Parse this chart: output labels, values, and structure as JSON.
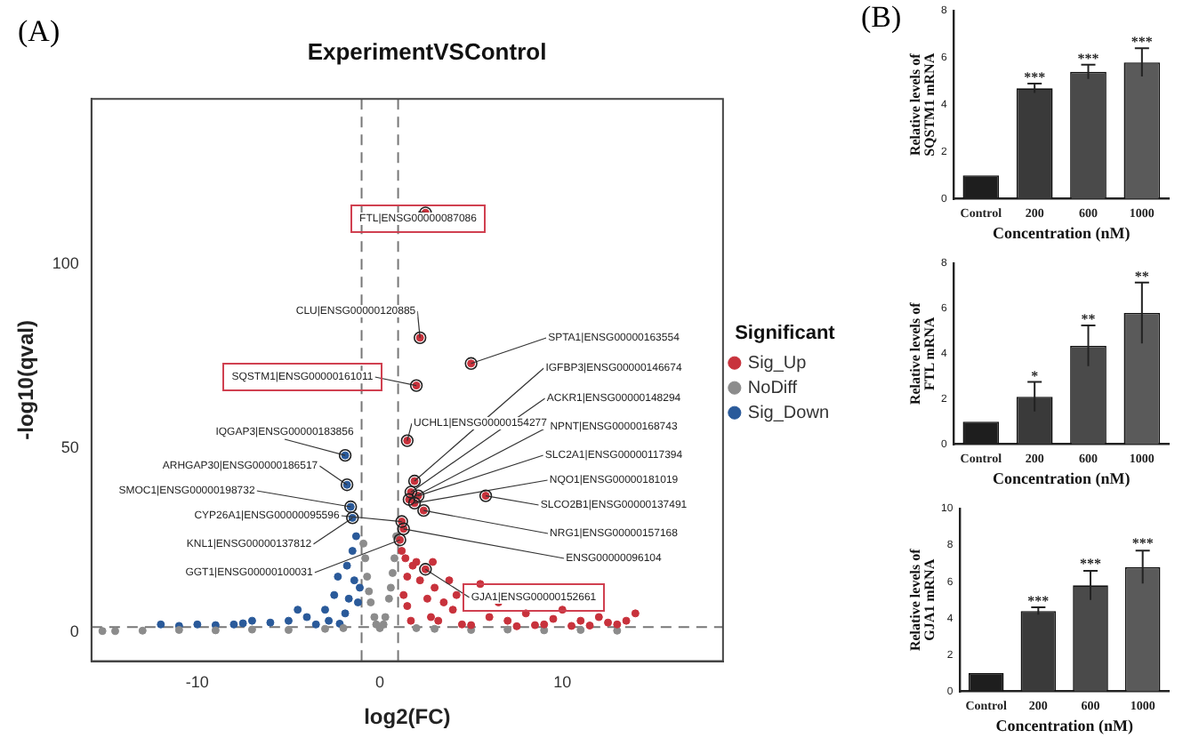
{
  "chart_data": [
    {
      "type": "scatter",
      "title": "ExperimentVSControl",
      "xlabel": "log2(FC)",
      "ylabel": "-log10(qval)",
      "legend": "right",
      "legend_title": "Significant",
      "marker": "circle",
      "grid": false,
      "xlim": [
        -15.8,
        18.8
      ],
      "xticks": [
        -10,
        0,
        10
      ],
      "ylim": [
        -8,
        145
      ],
      "yticks": [
        0,
        50,
        100
      ],
      "series": [
        {
          "name": "Sig_Up",
          "color": "#c8323c",
          "x": [
            2.5,
            2.2,
            5,
            2,
            1.9,
            1.5,
            1.7,
            1.6,
            2.1,
            1.9,
            5.8,
            1.2,
            2.4,
            1.3,
            1.1,
            2.5,
            1.2,
            1.4,
            1.8,
            2,
            1.5,
            2.2,
            3,
            1.3,
            2.6,
            3.5,
            4,
            1.5,
            5.5,
            6,
            7,
            8,
            9,
            10,
            11,
            12,
            13,
            14,
            3.2,
            4.5,
            6.5,
            8.5,
            10.5,
            12.5,
            2.8,
            1.7,
            5,
            7.5,
            9.5,
            11.5,
            13.5,
            4.2,
            3.8,
            2.9
          ],
          "values": [
            114,
            80,
            73,
            67,
            41,
            52,
            38,
            36,
            37,
            35,
            37,
            30,
            33,
            28,
            25,
            17,
            22,
            20,
            18,
            19,
            15,
            14,
            12,
            10,
            9,
            8,
            6,
            7,
            13,
            4,
            3,
            5,
            2,
            6,
            3,
            4,
            2,
            5,
            3,
            2,
            8,
            1.8,
            1.6,
            2.5,
            4,
            3,
            1.8,
            1.5,
            3.5,
            1.7,
            3,
            10,
            14,
            19
          ]
        },
        {
          "name": "NoDiff",
          "color": "#8c8c8c",
          "x": [
            -0.9,
            -0.7,
            -0.5,
            -0.3,
            0,
            0.3,
            0.5,
            0.7,
            0.9,
            -0.2,
            0.2,
            -13,
            -11,
            -9,
            -7,
            -5,
            -3,
            -2,
            2,
            3,
            5,
            7,
            9,
            11,
            13,
            -14.5,
            -15.2,
            -0.8,
            0.8,
            -0.6,
            0.6
          ],
          "values": [
            24,
            15,
            8,
            4,
            1,
            4,
            9,
            16,
            26,
            2,
            2,
            0.3,
            0.5,
            0.4,
            0.6,
            0.5,
            0.8,
            1,
            1,
            0.8,
            0.5,
            0.6,
            0.4,
            0.5,
            0.3,
            0.2,
            0.2,
            20,
            20,
            11,
            12
          ]
        },
        {
          "name": "Sig_Down",
          "color": "#2a5a9a",
          "x": [
            -1.9,
            -1.8,
            -1.6,
            -1.5,
            -1.3,
            -1.5,
            -1.8,
            -2.3,
            -1.4,
            -2.5,
            -1.7,
            -3,
            -1.9,
            -4,
            -2.8,
            -5,
            -6,
            -7,
            -8,
            -9,
            -10,
            -11,
            -12,
            -3.5,
            -2.2,
            -1.2,
            -1.1,
            -4.5,
            -7.5
          ],
          "values": [
            48,
            40,
            34,
            31,
            26,
            22,
            18,
            15,
            14,
            10,
            9,
            6,
            5,
            4,
            3,
            3,
            2.5,
            3,
            2,
            1.8,
            2,
            1.6,
            2,
            2,
            2.2,
            8,
            12,
            6,
            2.3
          ]
        }
      ],
      "ref_lines": [
        {
          "axis": "x",
          "value": -1,
          "line_style": "dashed"
        },
        {
          "axis": "x",
          "value": 1,
          "line_style": "dashed"
        },
        {
          "axis": "y",
          "value": 1.3,
          "line_style": "dashed"
        }
      ],
      "annotations": [
        "(A)",
        {
          "text": "FTL|ENSG00000087086",
          "x": 2.5,
          "y": 114
        },
        {
          "text": "CLU|ENSG00000120885",
          "x": 2.2,
          "y": 80
        },
        {
          "text": "SPTA1|ENSG00000163554",
          "x": 5,
          "y": 73
        },
        {
          "text": "SQSTM1|ENSG00000161011",
          "x": 2,
          "y": 67
        },
        {
          "text": "IGFBP3|ENSG00000146674",
          "x": 1.9,
          "y": 41
        },
        {
          "text": "IQGAP3|ENSG00000183856",
          "x": -1.9,
          "y": 48
        },
        {
          "text": "UCHL1|ENSG00000154277",
          "x": 1.5,
          "y": 52
        },
        {
          "text": "ACKR1|ENSG00000148294",
          "x": 1.7,
          "y": 38
        },
        {
          "text": "ARHGAP30|ENSG00000186517",
          "x": -1.8,
          "y": 40
        },
        {
          "text": "NPNT|ENSG00000168743",
          "x": 1.6,
          "y": 36
        },
        {
          "text": "SLC2A1|ENSG00000117394",
          "x": 2.1,
          "y": 37
        },
        {
          "text": "NQO1|ENSG00000181019",
          "x": 1.9,
          "y": 35
        },
        {
          "text": "SLCO2B1|ENSG00000137491",
          "x": 5.8,
          "y": 37
        },
        {
          "text": "SMOC1|ENSG00000198732",
          "x": -1.6,
          "y": 34
        },
        {
          "text": "CYP26A1|ENSG00000095596",
          "x": 1.2,
          "y": 30
        },
        {
          "text": "KNL1|ENSG00000137812",
          "x": -1.5,
          "y": 31
        },
        {
          "text": "NRG1|ENSG00000157168",
          "x": 2.4,
          "y": 33
        },
        {
          "text": "ENSG00000096104",
          "x": 1.3,
          "y": 28
        },
        {
          "text": "GGT1|ENSG00000100031",
          "x": 1.1,
          "y": 25
        },
        {
          "text": "GJA1|ENSG00000152661",
          "x": 2.5,
          "y": 17
        }
      ]
    },
    {
      "type": "bar",
      "categories": [
        "Control",
        "200",
        "600",
        "1000"
      ],
      "values": [
        1,
        4.7,
        5.4,
        5.8
      ],
      "errors": [
        null,
        0.2,
        0.3,
        0.6
      ],
      "colors": [
        "#1e1e1e",
        "#3a3a3a",
        "#4a4a4a",
        "#5a5a5a"
      ],
      "ylim": [
        0,
        8
      ],
      "yticks": [
        0,
        2,
        4,
        6,
        8
      ],
      "xlabel": "Concentration (nM)",
      "ylabel": "Relative levels of SQSTM1 mRNA",
      "annotations": [
        "(B)",
        {
          "text": "***",
          "x": "200",
          "y": 4.9
        },
        {
          "text": "***",
          "x": "600",
          "y": 5.7
        },
        {
          "text": "***",
          "x": "1000",
          "y": 6.4
        }
      ]
    },
    {
      "type": "bar",
      "categories": [
        "Control",
        "200",
        "600",
        "1000"
      ],
      "values": [
        1,
        2.1,
        4.35,
        5.8
      ],
      "errors": [
        null,
        0.65,
        0.9,
        1.35
      ],
      "colors": [
        "#1e1e1e",
        "#3a3a3a",
        "#4a4a4a",
        "#5a5a5a"
      ],
      "ylim": [
        0,
        8
      ],
      "yticks": [
        0,
        2,
        4,
        6,
        8
      ],
      "xlabel": "Concentration (nM)",
      "ylabel": "Relative levels of FTL mRNA",
      "annotations": [
        {
          "text": "*",
          "x": "200",
          "y": 2.75
        },
        {
          "text": "**",
          "x": "600",
          "y": 5.25
        },
        {
          "text": "**",
          "x": "1000",
          "y": 7.15
        }
      ]
    },
    {
      "type": "bar",
      "categories": [
        "Control",
        "200",
        "600",
        "1000"
      ],
      "values": [
        1,
        4.4,
        5.8,
        6.8
      ],
      "errors": [
        null,
        0.2,
        0.8,
        0.9
      ],
      "colors": [
        "#1e1e1e",
        "#3a3a3a",
        "#4a4a4a",
        "#5a5a5a"
      ],
      "ylim": [
        0,
        10
      ],
      "yticks": [
        0,
        2,
        4,
        6,
        8,
        10
      ],
      "xlabel": "Concentration (nM)",
      "ylabel": "Relative levels of GJA1 mRNA",
      "annotations": [
        {
          "text": "***",
          "x": "200",
          "y": 4.6
        },
        {
          "text": "***",
          "x": "600",
          "y": 6.65
        },
        {
          "text": "***",
          "x": "1000",
          "y": 7.75
        }
      ]
    }
  ]
}
